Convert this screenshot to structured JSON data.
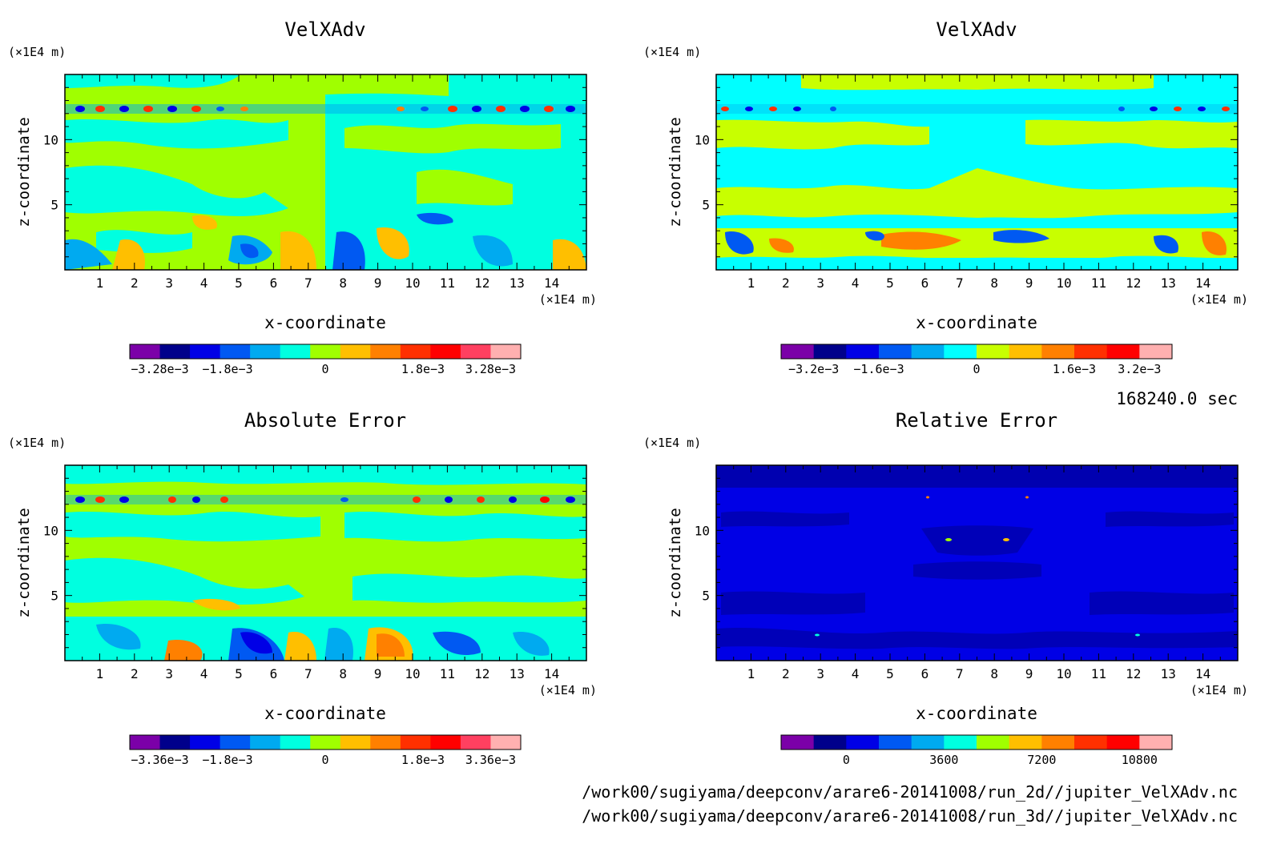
{
  "chart_data": [
    {
      "type": "heatmap",
      "title": "VelXAdv",
      "xlabel": "x-coordinate",
      "ylabel": "z-coordinate",
      "x_unit": "(×1E4 m)",
      "y_unit": "(×1E4 m)",
      "x_ticks": [
        "1",
        "2",
        "3",
        "4",
        "5",
        "6",
        "7",
        "8",
        "9",
        "10",
        "11",
        "12",
        "13",
        "14"
      ],
      "y_ticks": [
        "5",
        "10"
      ],
      "xlim": [
        0,
        15
      ],
      "ylim": [
        0,
        15
      ],
      "colorbar": {
        "labels": [
          "−3.28e−3",
          "−1.8e−3",
          "0",
          "1.8e−3",
          "3.28e−3"
        ],
        "colors": [
          "#7b00a8",
          "#00008b",
          "#0000e6",
          "#0059f2",
          "#00aaf0",
          "#00ffe0",
          "#a0ff00",
          "#ffbf00",
          "#ff8000",
          "#ff3000",
          "#ff0000",
          "#ff4060",
          "#ffb0b0"
        ]
      }
    },
    {
      "type": "heatmap",
      "title": "VelXAdv",
      "xlabel": "x-coordinate",
      "ylabel": "z-coordinate",
      "x_unit": "(×1E4 m)",
      "y_unit": "(×1E4 m)",
      "x_ticks": [
        "1",
        "2",
        "3",
        "4",
        "5",
        "6",
        "7",
        "8",
        "9",
        "10",
        "11",
        "12",
        "13",
        "14"
      ],
      "y_ticks": [
        "5",
        "10"
      ],
      "xlim": [
        0,
        15
      ],
      "ylim": [
        0,
        15
      ],
      "colorbar": {
        "labels": [
          "−3.2e−3",
          "−1.6e−3",
          "0",
          "1.6e−3",
          "3.2e−3"
        ],
        "colors": [
          "#7b00a8",
          "#00008b",
          "#0000e6",
          "#0059f2",
          "#00aaf0",
          "#00ffff",
          "#c8ff00",
          "#ffbf00",
          "#ff8000",
          "#ff3000",
          "#ff0000",
          "#ffb0b0"
        ]
      }
    },
    {
      "type": "heatmap",
      "title": "Absolute Error",
      "xlabel": "x-coordinate",
      "ylabel": "z-coordinate",
      "x_unit": "(×1E4 m)",
      "y_unit": "(×1E4 m)",
      "x_ticks": [
        "1",
        "2",
        "3",
        "4",
        "5",
        "6",
        "7",
        "8",
        "9",
        "10",
        "11",
        "12",
        "13",
        "14"
      ],
      "y_ticks": [
        "5",
        "10"
      ],
      "xlim": [
        0,
        15
      ],
      "ylim": [
        0,
        15
      ],
      "colorbar": {
        "labels": [
          "−3.36e−3",
          "−1.8e−3",
          "0",
          "1.8e−3",
          "3.36e−3"
        ],
        "colors": [
          "#7b00a8",
          "#00008b",
          "#0000e6",
          "#0059f2",
          "#00aaf0",
          "#00ffe0",
          "#a0ff00",
          "#ffbf00",
          "#ff8000",
          "#ff3000",
          "#ff0000",
          "#ff4060",
          "#ffb0b0"
        ]
      }
    },
    {
      "type": "heatmap",
      "title": "Relative Error",
      "xlabel": "x-coordinate",
      "ylabel": "z-coordinate",
      "x_unit": "(×1E4 m)",
      "y_unit": "(×1E4 m)",
      "x_ticks": [
        "1",
        "2",
        "3",
        "4",
        "5",
        "6",
        "7",
        "8",
        "9",
        "10",
        "11",
        "12",
        "13",
        "14"
      ],
      "y_ticks": [
        "5",
        "10"
      ],
      "xlim": [
        0,
        15
      ],
      "ylim": [
        0,
        15
      ],
      "colorbar": {
        "labels": [
          "0",
          "3600",
          "7200",
          "10800"
        ],
        "colors": [
          "#7b00a8",
          "#00008b",
          "#0000e6",
          "#0059f2",
          "#00aaf0",
          "#00ffe0",
          "#a0ff00",
          "#ffbf00",
          "#ff8000",
          "#ff3000",
          "#ff0000",
          "#ffb0b0"
        ]
      }
    }
  ],
  "footer": {
    "time_label": "168240.0 sec",
    "file_2d": "/work00/sugiyama/deepconv/arare6-20141008/run_2d//jupiter_VelXAdv.nc",
    "file_3d": "/work00/sugiyama/deepconv/arare6-20141008/run_3d//jupiter_VelXAdv.nc"
  }
}
